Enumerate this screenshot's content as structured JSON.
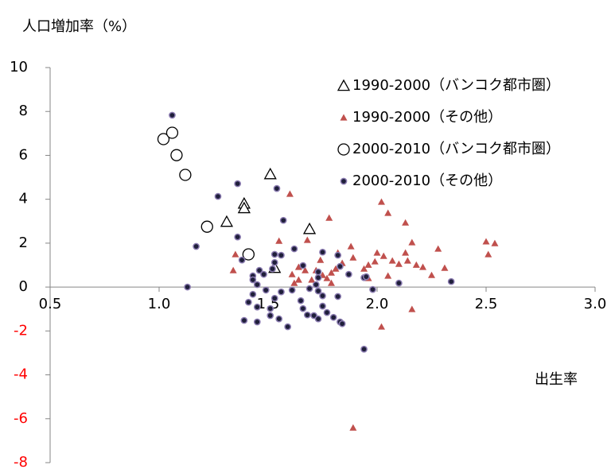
{
  "chart_data": {
    "type": "scatter",
    "ylabel": "人口増加率（%）",
    "xlabel": "出生率",
    "xlim": [
      0.5,
      3.0
    ],
    "xticks": [
      0.5,
      {
        "value": 1.0,
        "label": "1.0"
      },
      1.5,
      {
        "value": 2.0,
        "label": "2.0"
      },
      2.5,
      {
        "value": 3.0,
        "label": "3.0"
      }
    ],
    "ylim": [
      -8,
      10
    ],
    "yticks": [
      -8,
      -6,
      -4,
      -2,
      0,
      2,
      4,
      6,
      8,
      10
    ],
    "negative_tick_color": "#ff0000",
    "grid": false,
    "legend": "upper right",
    "series": [
      {
        "name": "1990-2000（バンコク都市圏）",
        "color": "#000000",
        "marker": "triangle-open",
        "x": [
          1.51,
          1.39,
          1.39,
          1.31,
          1.69,
          1.53
        ],
        "y": [
          5.14,
          3.8,
          3.59,
          2.97,
          2.64,
          0.87
        ]
      },
      {
        "name": "1990-2000（その他）",
        "color": "#c0504d",
        "marker": "triangle",
        "x": [
          1.6,
          1.35,
          1.34,
          1.55,
          1.68,
          1.78,
          2.02,
          2.05,
          2.13,
          2.16,
          2.28,
          2.5,
          2.51,
          2.54,
          2.02,
          2.16,
          1.89,
          2.31,
          2.25,
          1.88,
          2.0,
          2.03,
          2.07,
          2.1,
          2.13,
          2.14,
          2.18,
          2.21,
          1.99,
          1.96,
          1.94,
          1.89,
          1.84,
          1.81,
          1.79,
          1.77,
          1.75,
          1.72,
          1.7,
          1.67,
          1.64,
          1.62,
          1.64,
          1.74,
          1.82,
          2.05,
          1.96,
          1.79,
          1.61
        ],
        "y": [
          4.24,
          1.49,
          0.76,
          2.1,
          2.14,
          3.15,
          3.88,
          3.37,
          2.93,
          2.03,
          1.74,
          2.07,
          1.49,
          1.99,
          -1.81,
          -1.01,
          -6.41,
          0.87,
          0.54,
          1.85,
          1.56,
          1.41,
          1.2,
          1.05,
          1.56,
          1.2,
          1.01,
          0.91,
          1.16,
          1.01,
          0.83,
          1.34,
          1.09,
          0.83,
          0.65,
          0.4,
          0.54,
          0.76,
          0.33,
          0.76,
          0.33,
          0.18,
          0.91,
          1.23,
          1.56,
          0.51,
          0.4,
          0.18,
          0.58
        ]
      },
      {
        "name": "2000-2010（バンコク都市圏）",
        "color": "#000000",
        "marker": "circle-open",
        "x": [
          1.02,
          1.06,
          1.08,
          1.12,
          1.22,
          1.41
        ],
        "y": [
          6.74,
          7.03,
          6.01,
          5.11,
          2.75,
          1.49
        ]
      },
      {
        "name": "2000-2010（その他）",
        "color": "#1f1f3a",
        "edge": "#8a7bb0",
        "marker": "circle",
        "x": [
          1.06,
          1.27,
          1.36,
          1.54,
          1.57,
          1.17,
          1.36,
          1.38,
          1.13,
          1.53,
          1.56,
          1.53,
          1.52,
          1.48,
          1.43,
          1.46,
          1.43,
          1.45,
          1.49,
          1.43,
          1.45,
          1.39,
          1.45,
          1.51,
          1.55,
          1.59,
          1.53,
          1.56,
          1.61,
          1.62,
          1.66,
          1.65,
          1.66,
          1.68,
          1.71,
          1.73,
          1.75,
          1.77,
          1.8,
          1.83,
          1.84,
          1.82,
          1.73,
          1.75,
          1.72,
          1.73,
          1.73,
          1.75,
          1.83,
          1.82,
          1.87,
          1.94,
          1.95,
          1.98,
          2.1,
          2.34,
          1.94,
          1.69,
          1.51,
          1.41
        ],
        "y": [
          7.83,
          4.13,
          4.71,
          4.49,
          3.04,
          1.85,
          2.28,
          1.23,
          0.0,
          1.49,
          1.45,
          1.12,
          0.83,
          0.58,
          0.51,
          0.76,
          0.33,
          0.11,
          -0.14,
          -0.33,
          -0.91,
          -1.52,
          -1.59,
          -1.3,
          -1.45,
          -1.81,
          -0.51,
          -0.22,
          -0.14,
          1.74,
          0.98,
          -0.62,
          -0.98,
          -1.27,
          -1.3,
          -1.45,
          -0.87,
          -1.16,
          -1.38,
          -1.59,
          -1.67,
          -0.43,
          -0.18,
          -0.4,
          0.11,
          0.69,
          0.43,
          1.59,
          0.94,
          1.45,
          0.58,
          0.43,
          0.47,
          -0.11,
          0.18,
          0.25,
          -2.83,
          -0.07,
          -0.98,
          -0.69
        ]
      }
    ]
  }
}
